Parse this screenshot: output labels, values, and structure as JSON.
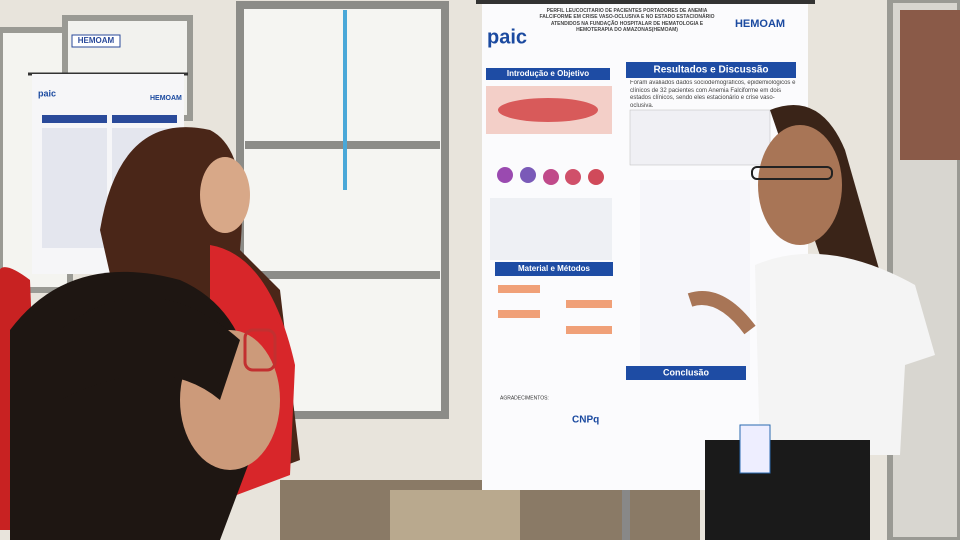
{
  "window_sign": "HEMOAM",
  "posters": [
    {
      "logo": "paic",
      "brand": "HEMOAM",
      "title": "PERFIL LEUCOCITÁRIO DE PACIENTES PORTADORES DE ANEMIA FALCIFORME EM CRISE VASO-OCLUSIVA E NO ESTADO ESTACIONÁRIO ATENDIDOS NA FUNDAÇÃO HOSPITALAR DE HEMATOLOGIA E HEMOTERAPIA DO AMAZONAS(HEMOAM)",
      "sections": [
        "Introdução e Objetivo",
        "Resultados e Discussão",
        "Material e Métodos",
        "Conclusão"
      ],
      "results_text": "Foram avaliados dados sociodemográficos, epidemiológicos e clínicos de 32 pacientes com Anemia Falciforme em dois estados clínicos, sendo eles estacionário e crise vaso-oclusiva.",
      "acknowledgements": "AGRADECIMENTOS:",
      "sponsor": "CNPq"
    },
    {
      "logo": "paic",
      "brand": "HEMOAM"
    }
  ]
}
